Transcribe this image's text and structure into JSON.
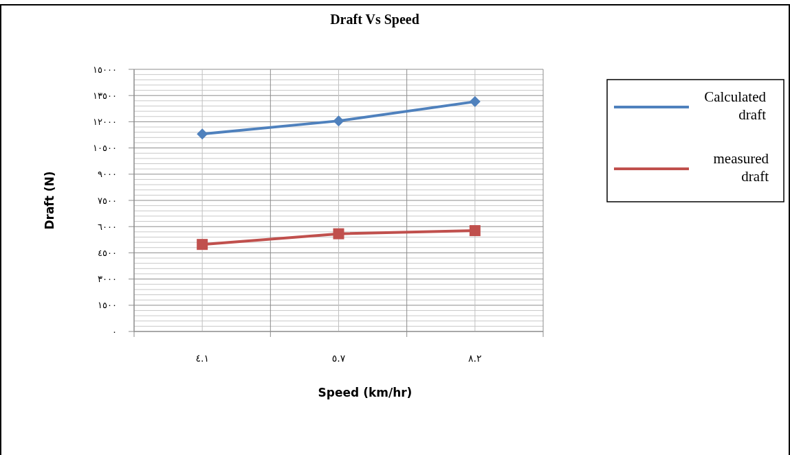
{
  "chart_data": {
    "type": "line",
    "title": "Draft Vs Speed",
    "xlabel": "Speed (km/hr)",
    "ylabel": "Draft (N)",
    "categories": [
      "٤.١",
      "٥.٧",
      "٨.٢"
    ],
    "series": [
      {
        "name": "Calculated draft",
        "color": "#4f81bd",
        "marker": "diamond",
        "values": [
          11300,
          12050,
          13150
        ]
      },
      {
        "name": "measured draft",
        "color": "#c0504d",
        "marker": "square",
        "values": [
          4980,
          5590,
          5770
        ]
      }
    ],
    "ylim": [
      0,
      15000
    ],
    "yticks": [
      {
        "value": 0,
        "label": "٠"
      },
      {
        "value": 1500,
        "label": "١٥٠٠"
      },
      {
        "value": 3000,
        "label": "٣٠٠٠"
      },
      {
        "value": 4500,
        "label": "٤٥٠٠"
      },
      {
        "value": 6000,
        "label": "٦٠٠٠"
      },
      {
        "value": 7500,
        "label": "٧٥٠٠"
      },
      {
        "value": 9000,
        "label": "٩٠٠٠"
      },
      {
        "value": 10500,
        "label": "١٠٥٠٠"
      },
      {
        "value": 12000,
        "label": "١٢٠٠٠"
      },
      {
        "value": 13500,
        "label": "١٣٥٠٠"
      },
      {
        "value": 15000,
        "label": "١٥٠٠٠"
      }
    ],
    "grid": true,
    "legend": "top right"
  }
}
